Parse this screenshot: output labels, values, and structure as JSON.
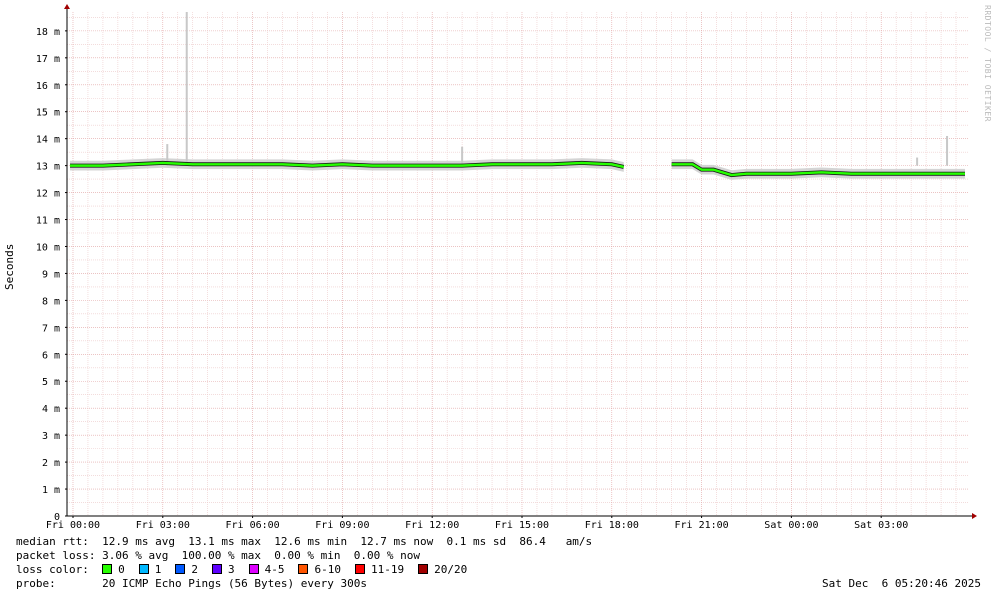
{
  "watermark": "RRDTOOL / TOBI OETIKER",
  "chart_data": {
    "type": "line",
    "title": "",
    "ylabel": "Seconds",
    "xlabel": "",
    "y_ticks": [
      "0",
      "1 m",
      "2 m",
      "3 m",
      "4 m",
      "5 m",
      "6 m",
      "7 m",
      "8 m",
      "9 m",
      "10 m",
      "11 m",
      "12 m",
      "13 m",
      "14 m",
      "15 m",
      "16 m",
      "17 m",
      "18 m"
    ],
    "ylim_ms": [
      0,
      18.7
    ],
    "x_ticks": [
      "Fri 00:00",
      "Fri 03:00",
      "Fri 06:00",
      "Fri 09:00",
      "Fri 12:00",
      "Fri 15:00",
      "Fri 18:00",
      "Fri 21:00",
      "Sat 00:00",
      "Sat 03:00"
    ],
    "x_range_hours": [
      -0.2,
      29.9
    ],
    "grid": true,
    "series": [
      {
        "name": "median rtt",
        "x_hours": [
          -0.1,
          1,
          2,
          3,
          4,
          5,
          6,
          7,
          8,
          9,
          10,
          11,
          12,
          13,
          14,
          15,
          16,
          17,
          18,
          18.4,
          null,
          20,
          20.7,
          21,
          21.4,
          22,
          22.5,
          23,
          24,
          25,
          26,
          27,
          28,
          29,
          29.8
        ],
        "y_ms": [
          13.0,
          13.0,
          13.05,
          13.1,
          13.05,
          13.05,
          13.05,
          13.05,
          13.0,
          13.05,
          13.0,
          13.0,
          13.0,
          13.0,
          13.05,
          13.05,
          13.05,
          13.1,
          13.05,
          12.95,
          null,
          13.05,
          13.05,
          12.85,
          12.85,
          12.65,
          12.7,
          12.7,
          12.7,
          12.75,
          12.7,
          12.7,
          12.7,
          12.7,
          12.7
        ]
      }
    ],
    "spikes_ms": [
      {
        "x_hours": 3.8,
        "y_ms": 18.7
      },
      {
        "x_hours": 3.15,
        "y_ms": 13.8
      },
      {
        "x_hours": 13.0,
        "y_ms": 13.7
      },
      {
        "x_hours": 29.2,
        "y_ms": 14.1
      },
      {
        "x_hours": 28.2,
        "y_ms": 13.3
      }
    ]
  },
  "legend": {
    "median_label": "median rtt:",
    "median_values": "12.9 ms avg  13.1 ms max  12.6 ms min  12.7 ms now  0.1 ms sd  86.4   am/s",
    "loss_label": "packet loss:",
    "loss_values": "3.06 % avg  100.00 % max  0.00 % min  0.00 % now",
    "color_label": "loss color:",
    "colors": [
      {
        "label": "0",
        "color": "#26ff00"
      },
      {
        "label": "1",
        "color": "#00b8ff"
      },
      {
        "label": "2",
        "color": "#0059ff"
      },
      {
        "label": "3",
        "color": "#5e00ff"
      },
      {
        "label": "4-5",
        "color": "#dd00ff"
      },
      {
        "label": "6-10",
        "color": "#ff5500"
      },
      {
        "label": "11-19",
        "color": "#ff0000"
      },
      {
        "label": "20/20",
        "color": "#a10000"
      }
    ],
    "probe_label": "probe:",
    "probe_value": "20 ICMP Echo Pings (56 Bytes) every 300s",
    "timestamp": "Sat Dec  6 05:20:46 2025"
  }
}
